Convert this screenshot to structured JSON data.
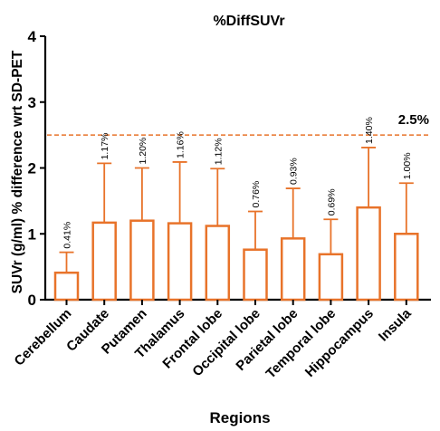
{
  "chart_data": {
    "type": "bar",
    "title": "%DiffSUVr",
    "xlabel": "Regions",
    "ylabel": "SUVr (g/ml) % difference wrt SD-PET",
    "ylim": [
      0,
      4
    ],
    "yticks": [
      "0",
      "1",
      "2",
      "3",
      "4"
    ],
    "categories": [
      "Cerebellum",
      "Caudate",
      "Putamen",
      "Thalamus",
      "Frontal lobe",
      "Occipital lobe",
      "Parietal lobe",
      "Temporal lobe",
      "Hippocampus",
      "Insula"
    ],
    "values": [
      0.41,
      1.17,
      1.2,
      1.16,
      1.12,
      0.76,
      0.93,
      0.69,
      1.4,
      1.0
    ],
    "error_upper": [
      0.72,
      2.07,
      2.0,
      2.09,
      1.99,
      1.34,
      1.69,
      1.22,
      2.31,
      1.77
    ],
    "data_labels": [
      "0.41%",
      "1.17%",
      "1.20%",
      "1.16%",
      "1.12%",
      "0.76%",
      "0.93%",
      "0.69%",
      "1.40%",
      "1.00%"
    ],
    "reference_line": {
      "value": 2.5,
      "label": "2.5%",
      "style": "dashed"
    },
    "bar_color": "#E8732A",
    "grid": false,
    "legend": "none"
  }
}
